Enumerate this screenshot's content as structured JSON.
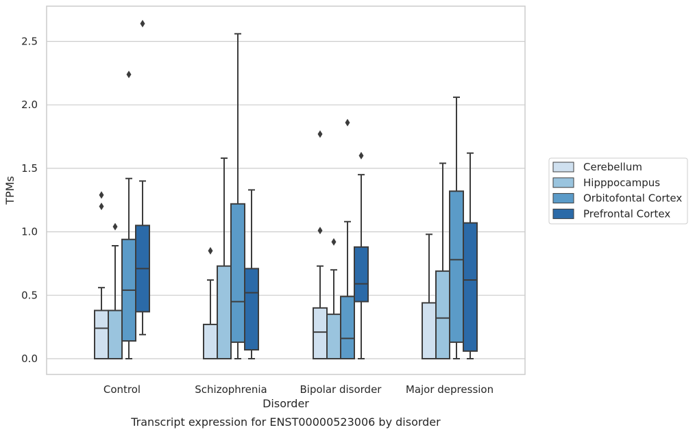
{
  "chart_data": {
    "type": "box",
    "xlabel": "Disorder",
    "ylabel": "TPMs",
    "caption": "Transcript expression for ENST00000523006 by disorder",
    "ylim": [
      -0.13,
      2.79
    ],
    "yticks": [
      0.0,
      0.5,
      1.0,
      1.5,
      2.0,
      2.5
    ],
    "ytick_labels": [
      "0.0",
      "0.5",
      "1.0",
      "1.5",
      "2.0",
      "2.5"
    ],
    "grid": "horizontal",
    "legend_position": "right",
    "categories": [
      "Control",
      "Schizophrenia",
      "Bipolar disorder",
      "Major depression"
    ],
    "series": [
      {
        "name": "Cerebellum",
        "color": "#cfe0ef",
        "boxes": [
          {
            "whislo": 0.0,
            "q1": 0.0,
            "med": 0.24,
            "q3": 0.38,
            "whishi": 0.56,
            "fliers": [
              1.2,
              1.29
            ]
          },
          {
            "whislo": 0.0,
            "q1": 0.0,
            "med": 0.0,
            "q3": 0.27,
            "whishi": 0.62,
            "fliers": [
              0.85
            ]
          },
          {
            "whislo": 0.0,
            "q1": 0.0,
            "med": 0.21,
            "q3": 0.4,
            "whishi": 0.73,
            "fliers": [
              1.01,
              1.77
            ]
          },
          {
            "whislo": 0.0,
            "q1": 0.0,
            "med": 0.0,
            "q3": 0.44,
            "whishi": 0.98,
            "fliers": []
          }
        ]
      },
      {
        "name": "Hipppocampus",
        "color": "#9ac4de",
        "boxes": [
          {
            "whislo": 0.0,
            "q1": 0.0,
            "med": 0.0,
            "q3": 0.38,
            "whishi": 0.89,
            "fliers": [
              1.04
            ]
          },
          {
            "whislo": 0.0,
            "q1": 0.0,
            "med": 0.0,
            "q3": 0.73,
            "whishi": 1.58,
            "fliers": []
          },
          {
            "whislo": 0.0,
            "q1": 0.0,
            "med": 0.0,
            "q3": 0.35,
            "whishi": 0.7,
            "fliers": [
              0.92
            ]
          },
          {
            "whislo": 0.0,
            "q1": 0.0,
            "med": 0.32,
            "q3": 0.69,
            "whishi": 1.54,
            "fliers": []
          }
        ]
      },
      {
        "name": "Orbitofontal Cortex",
        "color": "#5b9bc8",
        "boxes": [
          {
            "whislo": 0.0,
            "q1": 0.14,
            "med": 0.54,
            "q3": 0.94,
            "whishi": 1.42,
            "fliers": [
              2.24
            ]
          },
          {
            "whislo": 0.0,
            "q1": 0.13,
            "med": 0.45,
            "q3": 1.22,
            "whishi": 2.56,
            "fliers": []
          },
          {
            "whislo": 0.0,
            "q1": 0.0,
            "med": 0.16,
            "q3": 0.49,
            "whishi": 1.08,
            "fliers": [
              1.86
            ]
          },
          {
            "whislo": 0.0,
            "q1": 0.13,
            "med": 0.78,
            "q3": 1.32,
            "whishi": 2.06,
            "fliers": []
          }
        ]
      },
      {
        "name": "Prefrontal Cortex",
        "color": "#2b6aa8",
        "boxes": [
          {
            "whislo": 0.19,
            "q1": 0.37,
            "med": 0.71,
            "q3": 1.05,
            "whishi": 1.4,
            "fliers": [
              2.64
            ]
          },
          {
            "whislo": 0.0,
            "q1": 0.07,
            "med": 0.52,
            "q3": 0.71,
            "whishi": 1.33,
            "fliers": []
          },
          {
            "whislo": 0.0,
            "q1": 0.45,
            "med": 0.59,
            "q3": 0.88,
            "whishi": 1.45,
            "fliers": [
              1.6
            ]
          },
          {
            "whislo": 0.0,
            "q1": 0.06,
            "med": 0.62,
            "q3": 1.07,
            "whishi": 1.62,
            "fliers": []
          }
        ]
      }
    ]
  }
}
